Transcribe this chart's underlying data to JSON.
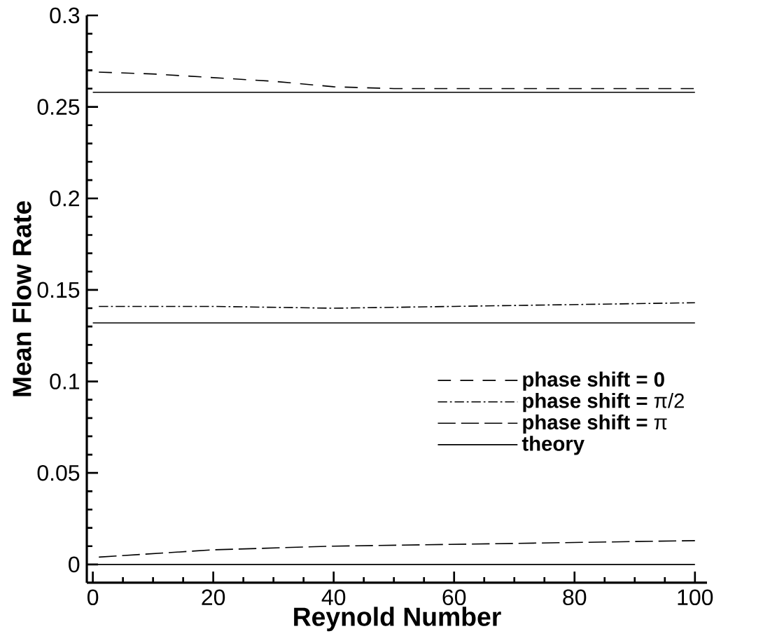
{
  "chart_data": {
    "type": "line",
    "xlabel": "Reynold Number",
    "ylabel": "Mean Flow Rate",
    "xlim": [
      -1,
      102
    ],
    "ylim": [
      -0.01,
      0.3
    ],
    "xticks": [
      0,
      20,
      40,
      60,
      80,
      100
    ],
    "yticks": [
      0,
      0.05,
      0.1,
      0.15,
      0.2,
      0.25,
      0.3
    ],
    "grid": false,
    "legend": "right",
    "marker": "none",
    "series": [
      {
        "name": "**phase shift = 0**",
        "color": "#000000",
        "line_style": "dashed",
        "x": [
          1,
          10,
          20,
          30,
          40,
          50,
          60,
          80,
          100
        ],
        "values": [
          0.269,
          0.268,
          0.266,
          0.264,
          0.261,
          0.26,
          0.26,
          0.26,
          0.26
        ]
      },
      {
        "name": "**phase shift =** π/2",
        "color": "#000000",
        "line_style": "dashdot",
        "x": [
          1,
          20,
          40,
          60,
          80,
          100
        ],
        "values": [
          0.141,
          0.141,
          0.14,
          0.141,
          0.142,
          0.143
        ]
      },
      {
        "name": "**phase shift =** π",
        "color": "#000000",
        "line_style": "longdashed",
        "x": [
          1,
          20,
          40,
          60,
          80,
          100
        ],
        "values": [
          0.004,
          0.008,
          0.01,
          0.011,
          0.012,
          0.013
        ]
      },
      {
        "name": "**theory**",
        "color": "#000000",
        "line_style": "solid",
        "x": [
          0,
          100
        ],
        "values": [
          0.258,
          0.258
        ]
      },
      {
        "color": "#000000",
        "line_style": "solid",
        "x": [
          0,
          100
        ],
        "values": [
          0.132,
          0.132
        ]
      },
      {
        "color": "#000000",
        "line_style": "solid",
        "x": [
          0,
          100
        ],
        "values": [
          0,
          0
        ]
      }
    ]
  }
}
